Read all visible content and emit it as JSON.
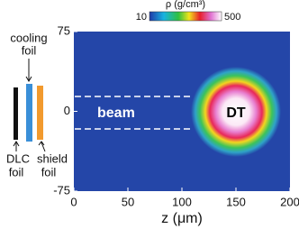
{
  "chart_data": {
    "type": "heatmap",
    "colorbar": {
      "label": "ρ (g/cm³)",
      "ticks": [
        10,
        500
      ]
    },
    "xlabel": "z (μm)",
    "xlim": [
      0,
      200
    ],
    "xticks": [
      0,
      50,
      100,
      150,
      200
    ],
    "ylim": [
      -75,
      75
    ],
    "yticks": [
      -75,
      0,
      75
    ],
    "annotations": [
      "beam",
      "DT",
      "cooling",
      "foil",
      "DLC",
      "foil",
      "shield",
      "foil"
    ]
  }
}
